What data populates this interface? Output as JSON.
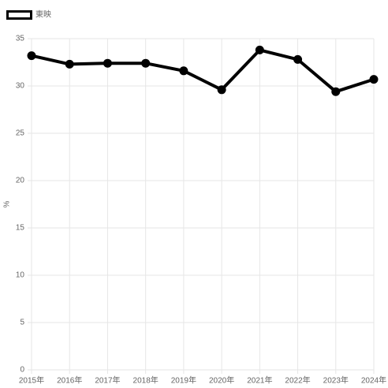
{
  "chart_data": {
    "type": "line",
    "categories": [
      "2015年",
      "2016年",
      "2017年",
      "2018年",
      "2019年",
      "2020年",
      "2021年",
      "2022年",
      "2023年",
      "2024年"
    ],
    "series": [
      {
        "name": "東映",
        "color": "#000000",
        "values": [
          33.2,
          32.3,
          32.4,
          32.4,
          31.6,
          29.6,
          33.8,
          32.8,
          29.4,
          30.7
        ]
      }
    ],
    "y_label": "%",
    "ylim": [
      0,
      35
    ],
    "yticks": [
      0,
      5,
      10,
      15,
      20,
      25,
      30,
      35
    ],
    "grid": true,
    "legend": "top-left"
  }
}
